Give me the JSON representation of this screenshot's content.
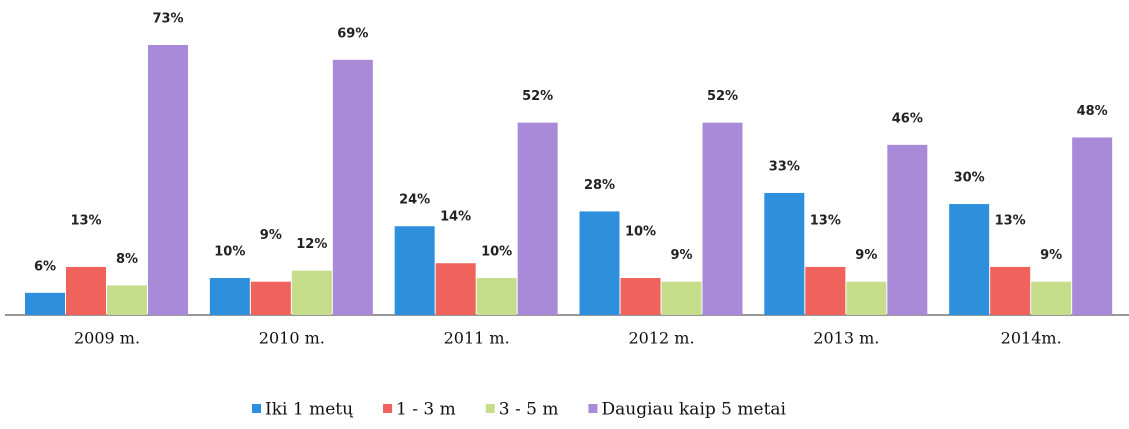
{
  "chart_data": {
    "type": "bar",
    "categories": [
      "2009 m.",
      "2010 m.",
      "2011 m.",
      "2012 m.",
      "2013 m.",
      "2014m."
    ],
    "series": [
      {
        "name": "Iki 1 metų",
        "color": "#2e8fdc",
        "values": [
          6,
          10,
          24,
          28,
          33,
          30
        ],
        "value_labels": [
          "6%",
          "10%",
          "24%",
          "28%",
          "33%",
          "30%"
        ]
      },
      {
        "name": "1 - 3 m",
        "color": "#f0625c",
        "values": [
          13,
          9,
          14,
          10,
          13,
          13
        ],
        "value_labels": [
          "13%",
          "9%",
          "14%",
          "10%",
          "13%",
          "13%"
        ]
      },
      {
        "name": "3 - 5 m",
        "color": "#c6de8c",
        "values": [
          8,
          12,
          10,
          9,
          9,
          9
        ],
        "value_labels": [
          "8%",
          "12%",
          "10%",
          "9%",
          "9%",
          "9%"
        ]
      },
      {
        "name": "Daugiau kaip 5 metai",
        "color": "#a98ad8",
        "values": [
          73,
          69,
          52,
          52,
          46,
          48
        ],
        "value_labels": [
          "73%",
          "69%",
          "52%",
          "52%",
          "46%",
          "48%"
        ]
      }
    ]
  }
}
